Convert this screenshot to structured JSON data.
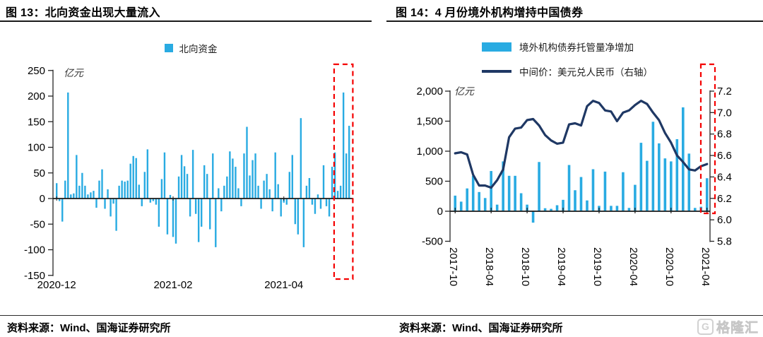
{
  "page": {
    "watermark": "格隆汇",
    "watermark_icon": "G"
  },
  "left_panel": {
    "title": "图 13：北向资金出现大量流入",
    "source": "资料来源：Wind、国海证券研究所",
    "legend": [
      {
        "label": "北向资金",
        "color": "#29ABE2",
        "type": "bar"
      }
    ],
    "chart_data": {
      "type": "bar",
      "title": "北向资金",
      "unit_label": "亿元",
      "ylabel": "亿元",
      "ylim": [
        -150,
        250
      ],
      "y_ticks": [
        250,
        200,
        150,
        100,
        50,
        0,
        -50,
        -100,
        -150
      ],
      "x_labels": [
        "2020-12",
        "2021-02",
        "2021-04"
      ],
      "x_label_indices": [
        0,
        41,
        80
      ],
      "grid": false,
      "bar_color": "#29ABE2",
      "highlight_box": {
        "color": "#F40000",
        "style": "dashed",
        "covers_last_n_bars": 5,
        "meaning": "最近一段大量流入区间"
      },
      "values": [
        30,
        -5,
        -45,
        35,
        207,
        8,
        10,
        85,
        25,
        50,
        25,
        8,
        12,
        15,
        -18,
        35,
        57,
        -20,
        18,
        -35,
        -10,
        -63,
        25,
        35,
        33,
        35,
        68,
        83,
        79,
        27,
        -15,
        52,
        96,
        -8,
        -5,
        -12,
        -55,
        38,
        90,
        -70,
        7,
        -75,
        -88,
        43,
        85,
        63,
        48,
        -35,
        95,
        -30,
        -85,
        -55,
        65,
        48,
        -60,
        88,
        -95,
        20,
        -25,
        25,
        43,
        92,
        78,
        62,
        20,
        -15,
        88,
        140,
        45,
        75,
        88,
        25,
        -20,
        35,
        48,
        18,
        -25,
        90,
        28,
        -35,
        -8,
        -12,
        52,
        85,
        -50,
        -70,
        157,
        -95,
        25,
        40,
        -12,
        -30,
        8,
        -20,
        65,
        -15,
        -35,
        62,
        90,
        15,
        25,
        207,
        88,
        142
      ]
    }
  },
  "right_panel": {
    "title": "图 14：4 月份境外机构增持中国债券",
    "source": "资料来源：Wind、国海证券研究所",
    "legend": [
      {
        "label": "境外机构债券托管量净增加",
        "color": "#29ABE2",
        "type": "bar"
      },
      {
        "label": "中间价：美元兑人民币（右轴）",
        "color": "#1F3864",
        "type": "line"
      }
    ],
    "chart_data": {
      "type": "combo",
      "unit_label": "亿元",
      "left_axis": {
        "label": "亿元",
        "ylim": [
          -500,
          2000
        ],
        "ticks": [
          2000,
          1500,
          1000,
          500,
          0,
          -500
        ]
      },
      "right_axis": {
        "ylim": [
          5.8,
          7.2
        ],
        "ticks": [
          7.2,
          7.0,
          6.8,
          6.6,
          6.4,
          6.2,
          6.0,
          5.8
        ]
      },
      "x_tick_labels": [
        "2017-10",
        "2018-04",
        "2018-10",
        "2019-04",
        "2019-10",
        "2020-04",
        "2020-10",
        "2021-04"
      ],
      "x_tick_indices": [
        0,
        6,
        12,
        18,
        24,
        30,
        36,
        42
      ],
      "grid": false,
      "highlight_box": {
        "color": "#F40000",
        "style": "dashed",
        "covers_last_n_bars": 1,
        "meaning": "2021-04 增持"
      },
      "categories": [
        "2017-10",
        "2017-11",
        "2017-12",
        "2018-01",
        "2018-02",
        "2018-03",
        "2018-04",
        "2018-05",
        "2018-06",
        "2018-07",
        "2018-08",
        "2018-09",
        "2018-10",
        "2018-11",
        "2018-12",
        "2019-01",
        "2019-02",
        "2019-03",
        "2019-04",
        "2019-05",
        "2019-06",
        "2019-07",
        "2019-08",
        "2019-09",
        "2019-10",
        "2019-11",
        "2019-12",
        "2020-01",
        "2020-02",
        "2020-03",
        "2020-04",
        "2020-05",
        "2020-06",
        "2020-07",
        "2020-08",
        "2020-09",
        "2020-10",
        "2020-11",
        "2020-12",
        "2021-01",
        "2021-02",
        "2021-03",
        "2021-04"
      ],
      "series": [
        {
          "name": "境外机构债券托管量净增加",
          "type": "bar",
          "axis": "left",
          "color": "#29ABE2",
          "values": [
            260,
            160,
            380,
            590,
            320,
            220,
            670,
            110,
            830,
            590,
            590,
            300,
            110,
            -190,
            820,
            50,
            40,
            100,
            190,
            770,
            350,
            570,
            180,
            700,
            90,
            660,
            90,
            90,
            650,
            55,
            440,
            1140,
            840,
            1490,
            1130,
            880,
            830,
            1200,
            1730,
            960,
            55,
            75,
            550
          ]
        },
        {
          "name": "中间价：美元兑人民币（右轴）",
          "type": "line",
          "axis": "right",
          "color": "#1F3864",
          "values": [
            6.62,
            6.63,
            6.61,
            6.42,
            6.32,
            6.32,
            6.3,
            6.37,
            6.47,
            6.77,
            6.85,
            6.86,
            6.93,
            6.94,
            6.88,
            6.79,
            6.74,
            6.71,
            6.72,
            6.89,
            6.9,
            6.88,
            7.06,
            7.11,
            7.09,
            7.02,
            7.01,
            6.92,
            7.0,
            7.02,
            7.07,
            7.11,
            7.08,
            7.0,
            6.93,
            6.81,
            6.72,
            6.6,
            6.54,
            6.47,
            6.46,
            6.5,
            6.52
          ]
        }
      ]
    }
  }
}
